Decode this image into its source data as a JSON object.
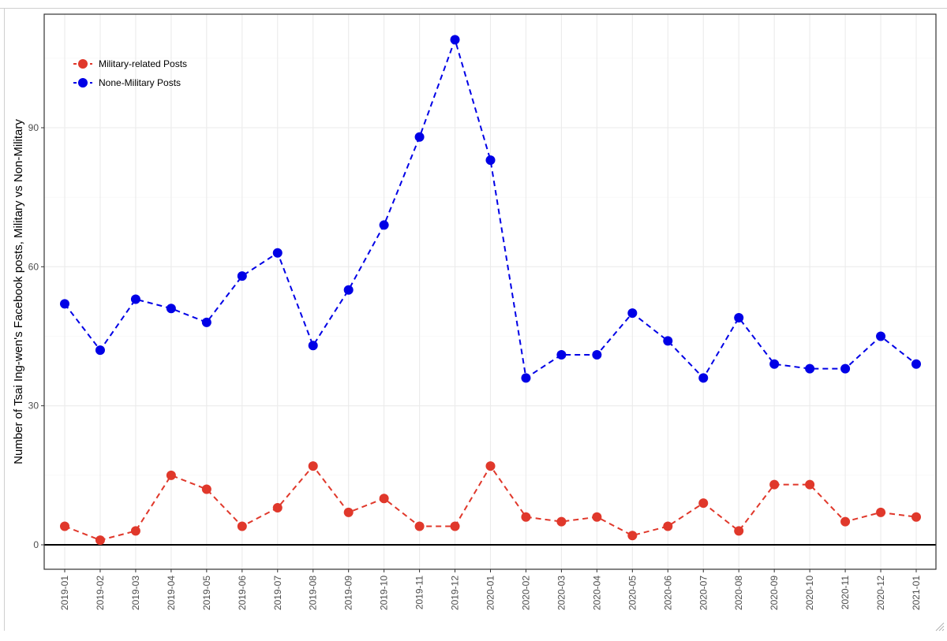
{
  "chart_data": {
    "type": "line",
    "title": "",
    "xlabel": "",
    "ylabel": "Number of Tsai Ing-wen's Facebook posts, Military vs Non-Military",
    "categories": [
      "2019-01",
      "2019-02",
      "2019-03",
      "2019-04",
      "2019-05",
      "2019-06",
      "2019-07",
      "2019-08",
      "2019-09",
      "2019-10",
      "2019-11",
      "2019-12",
      "2020-01",
      "2020-02",
      "2020-03",
      "2020-04",
      "2020-05",
      "2020-06",
      "2020-07",
      "2020-08",
      "2020-09",
      "2020-10",
      "2020-11",
      "2020-12",
      "2021-01"
    ],
    "y_ticks": [
      0,
      30,
      60,
      90
    ],
    "ylim": [
      -5,
      114
    ],
    "grid": true,
    "reference_line": 0,
    "legend_position": "top-left",
    "series": [
      {
        "name": "Military-related Posts",
        "color": "#e0382b",
        "line_style": "dashed",
        "values": [
          4,
          1,
          3,
          15,
          12,
          4,
          8,
          17,
          7,
          10,
          4,
          4,
          17,
          6,
          5,
          6,
          2,
          4,
          9,
          3,
          13,
          13,
          5,
          7,
          6
        ]
      },
      {
        "name": "None-Military Posts",
        "color": "#0000e6",
        "line_style": "dashed",
        "values": [
          52,
          42,
          53,
          51,
          48,
          58,
          63,
          43,
          55,
          69,
          88,
          109,
          83,
          36,
          41,
          41,
          50,
          44,
          36,
          49,
          39,
          38,
          38,
          45,
          39
        ]
      }
    ]
  }
}
